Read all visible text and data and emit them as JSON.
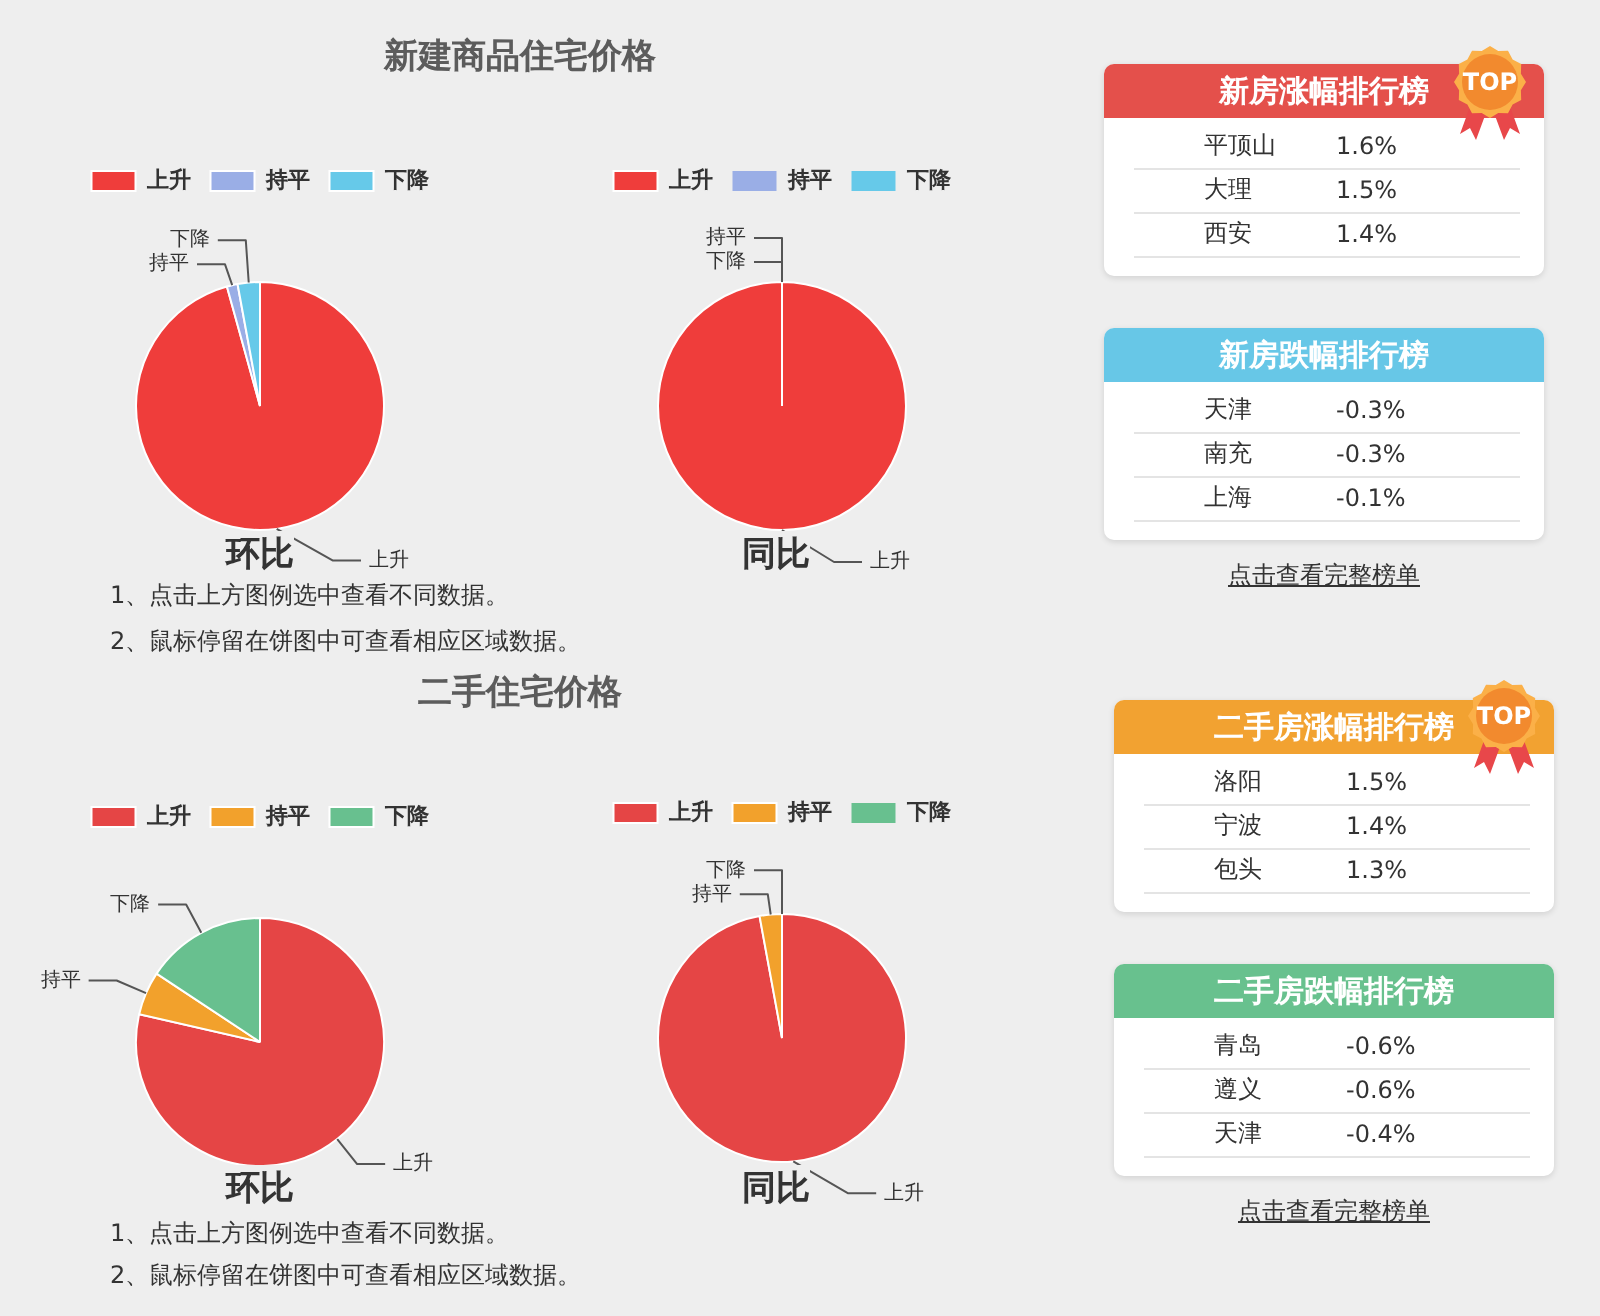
{
  "chart_data": [
    {
      "type": "pie",
      "title": "新建商品住宅价格",
      "xlabel": "环比",
      "categories": [
        "上升",
        "持平",
        "下降"
      ],
      "values": [
        95.7,
        1.4,
        2.9
      ],
      "colors": [
        "#ef3d3b",
        "#9aaee6",
        "#66c9e9"
      ],
      "legend": "top",
      "annotations": [
        "1、点击上方图例选中查看不同数据。",
        "2、鼠标停留在饼图中可查看相应区域数据。"
      ]
    },
    {
      "type": "pie",
      "xlabel": "同比",
      "categories": [
        "上升",
        "持平",
        "下降"
      ],
      "values": [
        100,
        0,
        0
      ],
      "colors": [
        "#ef3d3b",
        "#9aaee6",
        "#66c9e9"
      ],
      "legend": "top"
    },
    {
      "type": "other",
      "title": "新房涨幅排行榜",
      "subtitle": "TOP",
      "annotations": [
        "平顶山",
        "1.6%",
        "大理",
        "1.5%",
        "西安",
        "1.4%"
      ]
    },
    {
      "type": "other",
      "title": "新房跌幅排行榜",
      "annotations": [
        "天津",
        "-0.3%",
        "南充",
        "-0.3%",
        "上海",
        "-0.1%",
        "点击查看完整榜单"
      ]
    },
    {
      "type": "pie",
      "title": "二手住宅价格",
      "xlabel": "环比",
      "categories": [
        "上升",
        "持平",
        "下降"
      ],
      "values": [
        78.6,
        5.7,
        15.7
      ],
      "colors": [
        "#e54545",
        "#f2a12c",
        "#68c08f"
      ],
      "legend": "top",
      "annotations": [
        "1、点击上方图例选中查看不同数据。",
        "2、鼠标停留在饼图中可查看相应区域数据。"
      ]
    },
    {
      "type": "pie",
      "xlabel": "同比",
      "categories": [
        "上升",
        "持平",
        "下降"
      ],
      "values": [
        97.1,
        2.9,
        0
      ],
      "colors": [
        "#e54545",
        "#f2a12c",
        "#68c08f"
      ],
      "legend": "top"
    },
    {
      "type": "other",
      "title": "二手房涨幅排行榜",
      "subtitle": "TOP",
      "annotations": [
        "洛阳",
        "1.5%",
        "宁波",
        "1.4%",
        "包头",
        "1.3%"
      ]
    },
    {
      "type": "other",
      "title": "二手房跌幅排行榜",
      "annotations": [
        "青岛",
        "-0.6%",
        "遵义",
        "-0.6%",
        "天津",
        "-0.4%",
        "点击查看完整榜单"
      ]
    }
  ]
}
